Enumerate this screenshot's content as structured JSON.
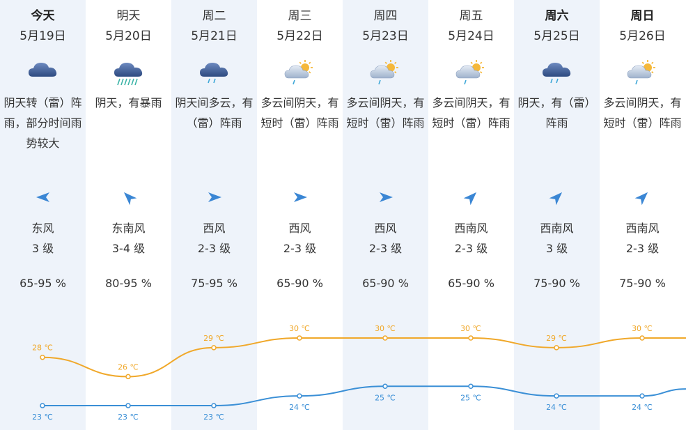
{
  "days": [
    {
      "day": "今天",
      "bold": true,
      "date": "5月19日",
      "icon": "cloud-icon",
      "desc": "阴天转（雷）阵雨，部分时间雨势较大",
      "wind_dir": "东风",
      "wind_level": "3 级",
      "wind_icon": "wind-arrow-west-icon",
      "humidity": "65-95 %",
      "high": "28 ℃",
      "low": "23 ℃"
    },
    {
      "day": "明天",
      "bold": false,
      "date": "5月20日",
      "icon": "heavy-rain-icon",
      "desc": "阴天，有暴雨",
      "wind_dir": "东南风",
      "wind_level": "3-4 级",
      "wind_icon": "wind-arrow-northwest-icon",
      "humidity": "80-95 %",
      "high": "26 ℃",
      "low": "23 ℃"
    },
    {
      "day": "周二",
      "bold": false,
      "date": "5月21日",
      "icon": "cloud-rain-icon",
      "desc": "阴天间多云，有（雷）阵雨",
      "wind_dir": "西风",
      "wind_level": "2-3 级",
      "wind_icon": "wind-arrow-east-icon",
      "humidity": "75-95 %",
      "high": "29 ℃",
      "low": "23 ℃"
    },
    {
      "day": "周三",
      "bold": false,
      "date": "5月22日",
      "icon": "sun-cloud-rain-icon",
      "desc": "多云间阴天，有短时（雷）阵雨",
      "wind_dir": "西风",
      "wind_level": "2-3 级",
      "wind_icon": "wind-arrow-east-icon",
      "humidity": "65-90 %",
      "high": "30 ℃",
      "low": "24 ℃"
    },
    {
      "day": "周四",
      "bold": false,
      "date": "5月23日",
      "icon": "sun-cloud-rain-icon",
      "desc": "多云间阴天，有短时（雷）阵雨",
      "wind_dir": "西风",
      "wind_level": "2-3 级",
      "wind_icon": "wind-arrow-east-icon",
      "humidity": "65-90 %",
      "high": "30 ℃",
      "low": "25 ℃"
    },
    {
      "day": "周五",
      "bold": false,
      "date": "5月24日",
      "icon": "sun-cloud-rain-icon",
      "desc": "多云间阴天，有短时（雷）阵雨",
      "wind_dir": "西南风",
      "wind_level": "2-3 级",
      "wind_icon": "wind-arrow-northeast-icon",
      "humidity": "65-90 %",
      "high": "30 ℃",
      "low": "25 ℃"
    },
    {
      "day": "周六",
      "bold": true,
      "date": "5月25日",
      "icon": "cloud-rain-icon",
      "desc": "阴天，有（雷）阵雨",
      "wind_dir": "西南风",
      "wind_level": "3 级",
      "wind_icon": "wind-arrow-northeast-icon",
      "humidity": "75-90 %",
      "high": "29 ℃",
      "low": "24 ℃"
    },
    {
      "day": "周日",
      "bold": true,
      "date": "5月26日",
      "icon": "sun-cloud-rain-icon",
      "desc": "多云间阴天，有短时（雷）阵雨",
      "wind_dir": "西南风",
      "wind_level": "2-3 级",
      "wind_icon": "wind-arrow-northeast-icon",
      "humidity": "75-90 %",
      "high": "30 ℃",
      "low": "24 ℃"
    }
  ],
  "chart_data": {
    "type": "line",
    "categories": [
      "5月19日",
      "5月20日",
      "5月21日",
      "5月22日",
      "5月23日",
      "5月24日",
      "5月25日",
      "5月26日"
    ],
    "series": [
      {
        "values": [
          28,
          26,
          29,
          30,
          30,
          30,
          29,
          30
        ],
        "color": "#f0a82a"
      },
      {
        "values": [
          23,
          23,
          23,
          24,
          25,
          25,
          24,
          24
        ],
        "color": "#3a8fd6"
      }
    ],
    "unit": "℃"
  },
  "colors": {
    "high_line": "#f0a82a",
    "low_line": "#3a8fd6",
    "wind_arrow": "#3a86d4",
    "cloud": "#3f5f95"
  }
}
